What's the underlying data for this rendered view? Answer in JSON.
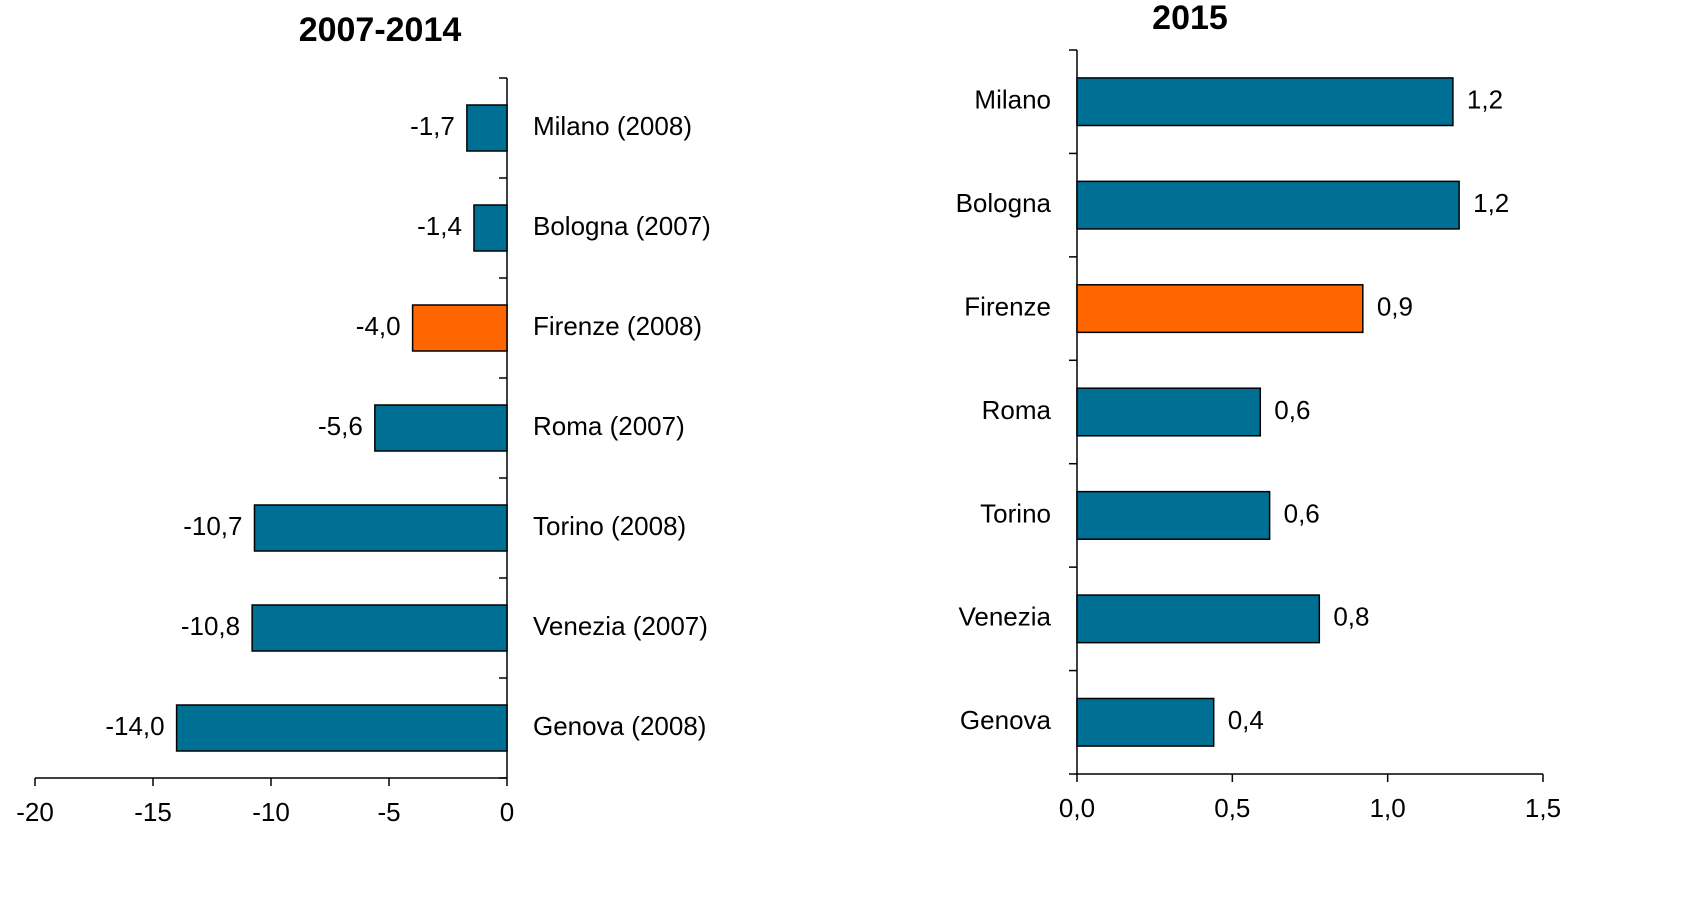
{
  "chart_data": [
    {
      "type": "barh",
      "title": "2007-2014",
      "categories": [
        "Milano (2008)",
        "Bologna (2007)",
        "Firenze (2008)",
        "Roma (2007)",
        "Torino (2008)",
        "Venezia (2007)",
        "Genova (2008)"
      ],
      "values": [
        -1.7,
        -1.4,
        -4.0,
        -5.6,
        -10.7,
        -10.8,
        -14.0
      ],
      "value_labels": [
        "-1,7",
        "-1,4",
        "-4,0",
        "-5,6",
        "-10,7",
        "-10,8",
        "-14,0"
      ],
      "colors": [
        "#006f94",
        "#006f94",
        "#ff6600",
        "#006f94",
        "#006f94",
        "#006f94",
        "#006f94"
      ],
      "xlim": [
        -20,
        0
      ],
      "xticks": [
        -20,
        -15,
        -10,
        -5,
        0
      ]
    },
    {
      "type": "barh",
      "title": "2015",
      "categories": [
        "Milano",
        "Bologna",
        "Firenze",
        "Roma",
        "Torino",
        "Venezia",
        "Genova"
      ],
      "values": [
        1.21,
        1.23,
        0.92,
        0.59,
        0.62,
        0.78,
        0.44
      ],
      "value_labels": [
        "1,2",
        "1,2",
        "0,9",
        "0,6",
        "0,6",
        "0,8",
        "0,4"
      ],
      "colors": [
        "#006f94",
        "#006f94",
        "#ff6600",
        "#006f94",
        "#006f94",
        "#006f94",
        "#006f94"
      ],
      "xlim": [
        0,
        1.5
      ],
      "xticks": [
        {
          "value": 0,
          "label": "0,0"
        },
        {
          "value": 0.5,
          "label": "0,5"
        },
        {
          "value": 1,
          "label": "1,0"
        },
        {
          "value": 1.5,
          "label": "1,5"
        }
      ]
    }
  ]
}
